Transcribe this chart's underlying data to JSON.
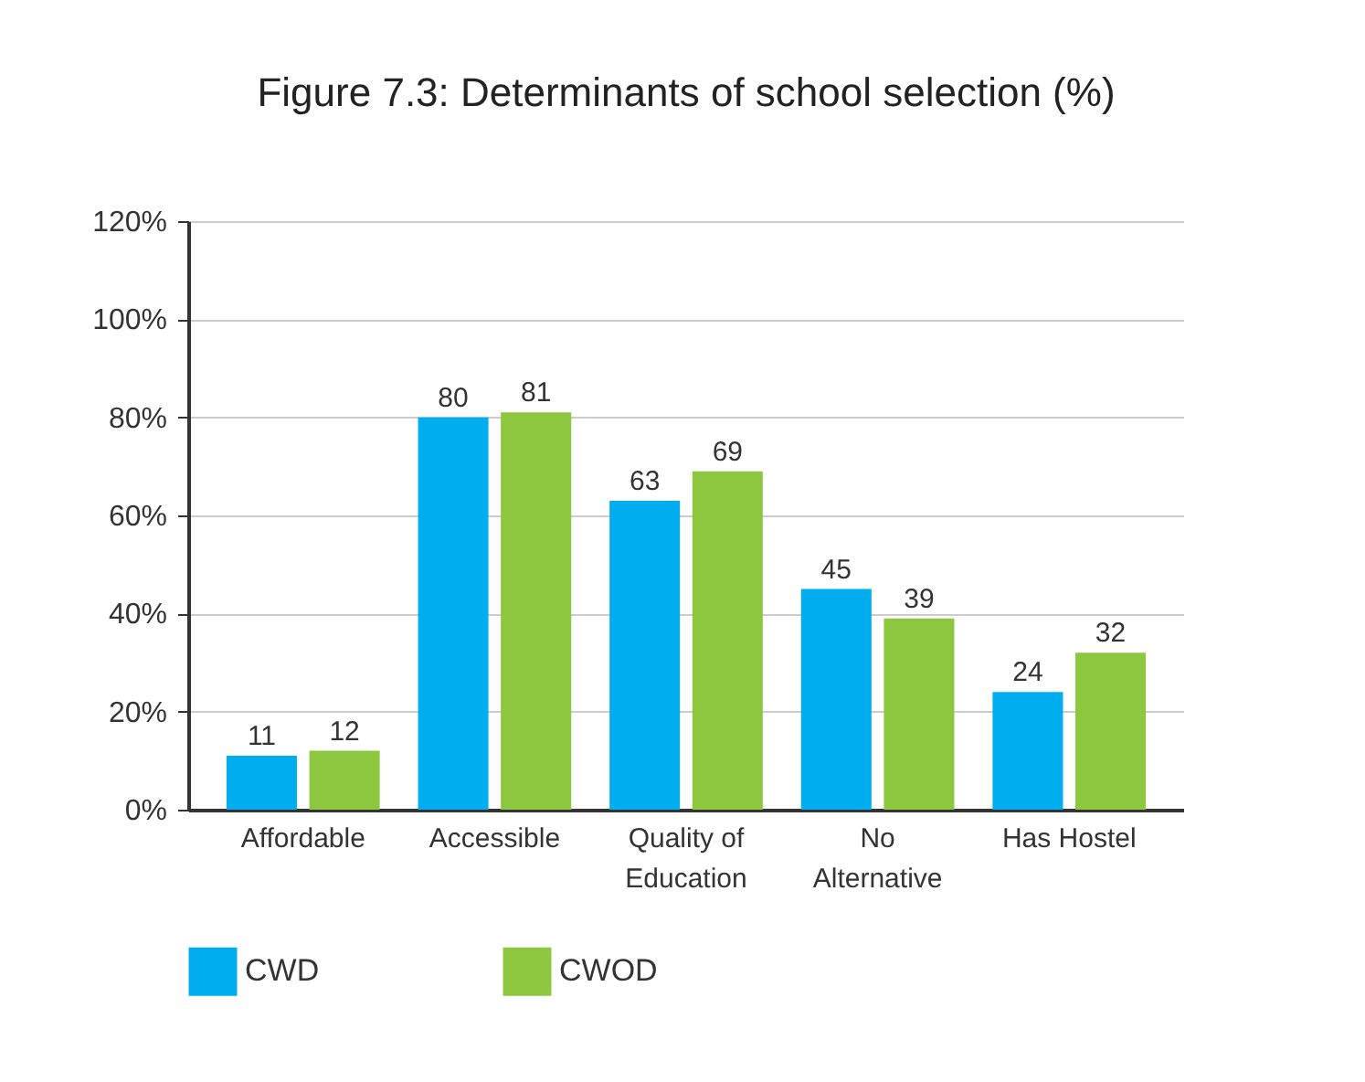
{
  "chart_data": {
    "type": "bar",
    "title": "Figure 7.3: Determinants of school selection (%)",
    "categories": [
      "Affordable",
      "Accessible",
      "Quality of Education",
      "No Alternative",
      "Has Hostel"
    ],
    "series": [
      {
        "name": "CWD",
        "color": "#00aeef",
        "values": [
          11,
          80,
          63,
          45,
          24
        ]
      },
      {
        "name": "CWOD",
        "color": "#8dc63f",
        "values": [
          12,
          81,
          69,
          39,
          32
        ]
      }
    ],
    "ylim": [
      0,
      120
    ],
    "yticks": [
      {
        "value": 0,
        "label": "0%"
      },
      {
        "value": 20,
        "label": "20%"
      },
      {
        "value": 40,
        "label": "40%"
      },
      {
        "value": 60,
        "label": "60%"
      },
      {
        "value": 80,
        "label": "80%"
      },
      {
        "value": 100,
        "label": "100%"
      },
      {
        "value": 120,
        "label": "120%"
      }
    ],
    "grid": "y",
    "legend": "bottom",
    "data_labels": true
  }
}
